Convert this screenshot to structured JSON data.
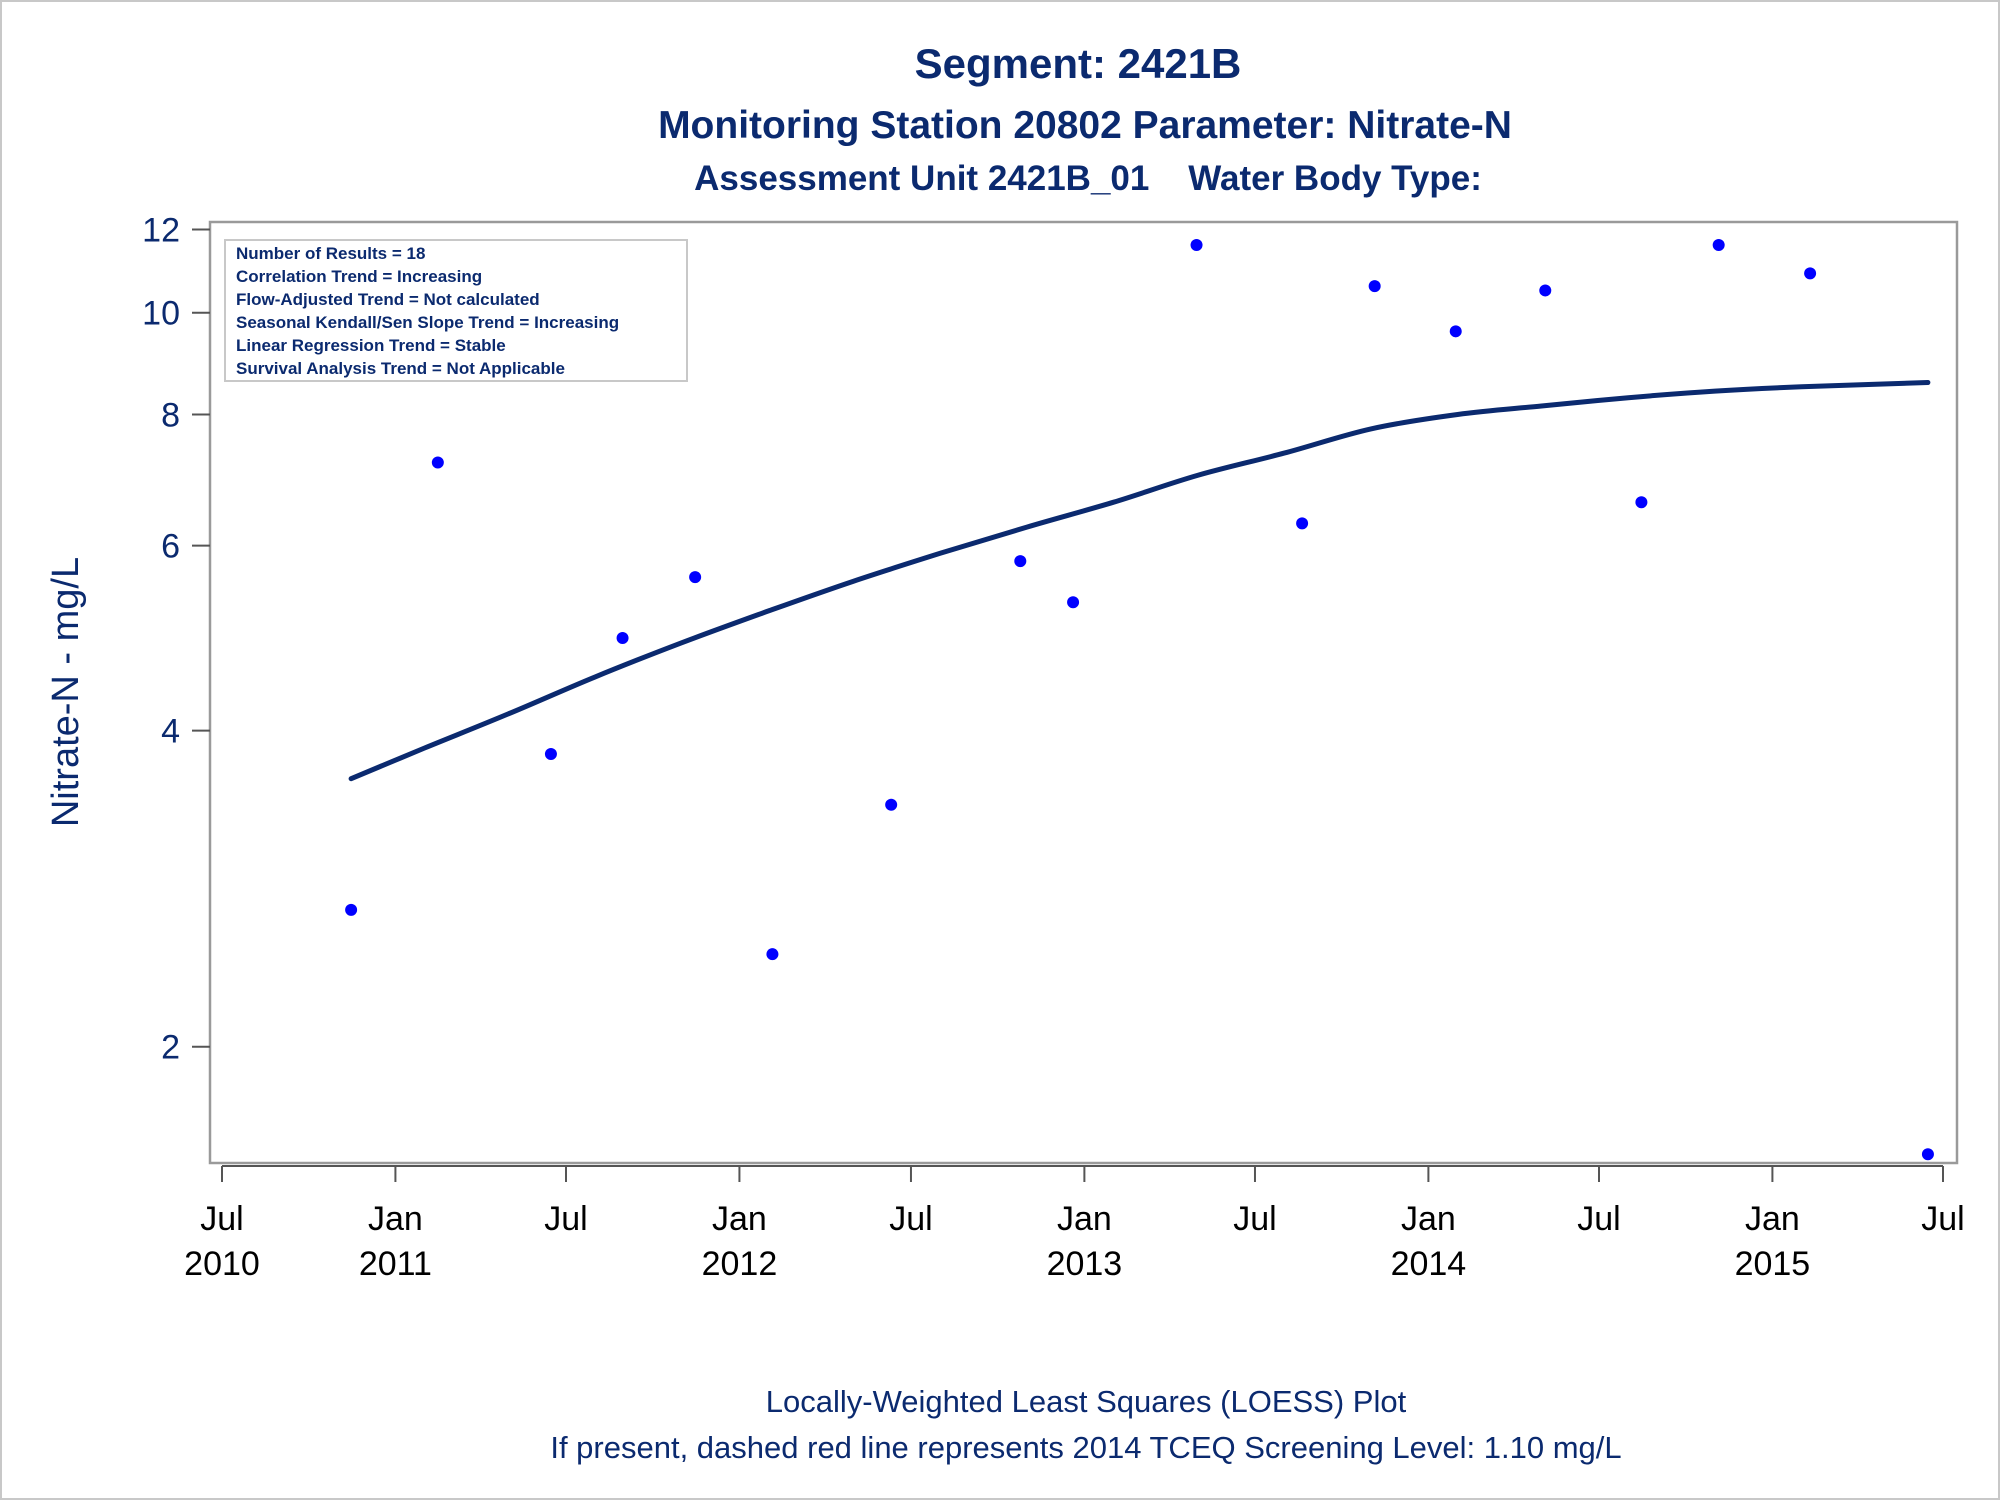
{
  "chart_data": {
    "type": "scatter",
    "title": "Segment: 2421B",
    "subtitle": "Monitoring Station 20802 Parameter: Nitrate-N",
    "subtitle2": "Assessment Unit 2421B_01    Water Body Type:",
    "ylabel": "Nitrate-N - mg/L",
    "xlabel": "",
    "y_scale": "log",
    "ylim": [
      1.55,
      12.2
    ],
    "y_ticks": [
      2,
      4,
      6,
      8,
      10,
      12
    ],
    "xlim": [
      "2010-07-01",
      "2015-07-01"
    ],
    "x_ticks": [
      {
        "date": "2010-07-01",
        "label": "Jul",
        "year": "2010"
      },
      {
        "date": "2011-01-01",
        "label": "Jan",
        "year": "2011"
      },
      {
        "date": "2011-07-01",
        "label": "Jul",
        "year": ""
      },
      {
        "date": "2012-01-01",
        "label": "Jan",
        "year": "2012"
      },
      {
        "date": "2012-07-01",
        "label": "Jul",
        "year": ""
      },
      {
        "date": "2013-01-01",
        "label": "Jan",
        "year": "2013"
      },
      {
        "date": "2013-07-01",
        "label": "Jul",
        "year": ""
      },
      {
        "date": "2014-01-01",
        "label": "Jan",
        "year": "2014"
      },
      {
        "date": "2014-07-01",
        "label": "Jul",
        "year": ""
      },
      {
        "date": "2015-01-01",
        "label": "Jan",
        "year": "2015"
      },
      {
        "date": "2015-07-01",
        "label": "Jul",
        "year": ""
      }
    ],
    "series": [
      {
        "kind": "points",
        "color": "#0000ff",
        "x": [
          "2010-11-15",
          "2011-02-15",
          "2011-06-15",
          "2011-08-30",
          "2011-11-15",
          "2012-02-05",
          "2012-06-10",
          "2012-10-25",
          "2012-12-20",
          "2013-04-30",
          "2013-08-20",
          "2013-11-05",
          "2014-01-30",
          "2014-05-05",
          "2014-08-15",
          "2014-11-05",
          "2015-02-10",
          "2015-06-15"
        ],
        "y": [
          2.7,
          7.2,
          3.8,
          4.9,
          5.6,
          2.45,
          3.4,
          5.8,
          5.3,
          11.6,
          6.3,
          10.6,
          9.6,
          10.5,
          6.6,
          11.6,
          10.9,
          1.58
        ]
      },
      {
        "kind": "loess",
        "color": "#0b2a6f",
        "x": [
          "2010-11-15",
          "2011-02-01",
          "2011-05-01",
          "2011-08-01",
          "2011-11-01",
          "2012-02-01",
          "2012-05-01",
          "2012-08-01",
          "2012-11-01",
          "2013-02-01",
          "2013-05-01",
          "2013-08-01",
          "2013-11-01",
          "2014-02-01",
          "2014-05-01",
          "2014-08-01",
          "2014-11-01",
          "2015-02-01",
          "2015-06-15"
        ],
        "y": [
          3.6,
          3.85,
          4.15,
          4.5,
          4.85,
          5.2,
          5.55,
          5.9,
          6.25,
          6.6,
          7.0,
          7.35,
          7.75,
          8.0,
          8.15,
          8.3,
          8.42,
          8.5,
          8.58
        ]
      }
    ],
    "inset_lines": [
      "Number of Results = 18",
      "Correlation Trend = Increasing",
      "Flow-Adjusted Trend = Not calculated",
      "Seasonal Kendall/Sen Slope Trend = Increasing",
      "Linear Regression Trend = Stable",
      "Survival Analysis Trend = Not Applicable"
    ],
    "footnotes": [
      "Locally-Weighted Least Squares (LOESS) Plot",
      "If present, dashed red line represents 2014 TCEQ Screening Level: 1.10 mg/L"
    ],
    "grid": false,
    "legend": "none"
  }
}
